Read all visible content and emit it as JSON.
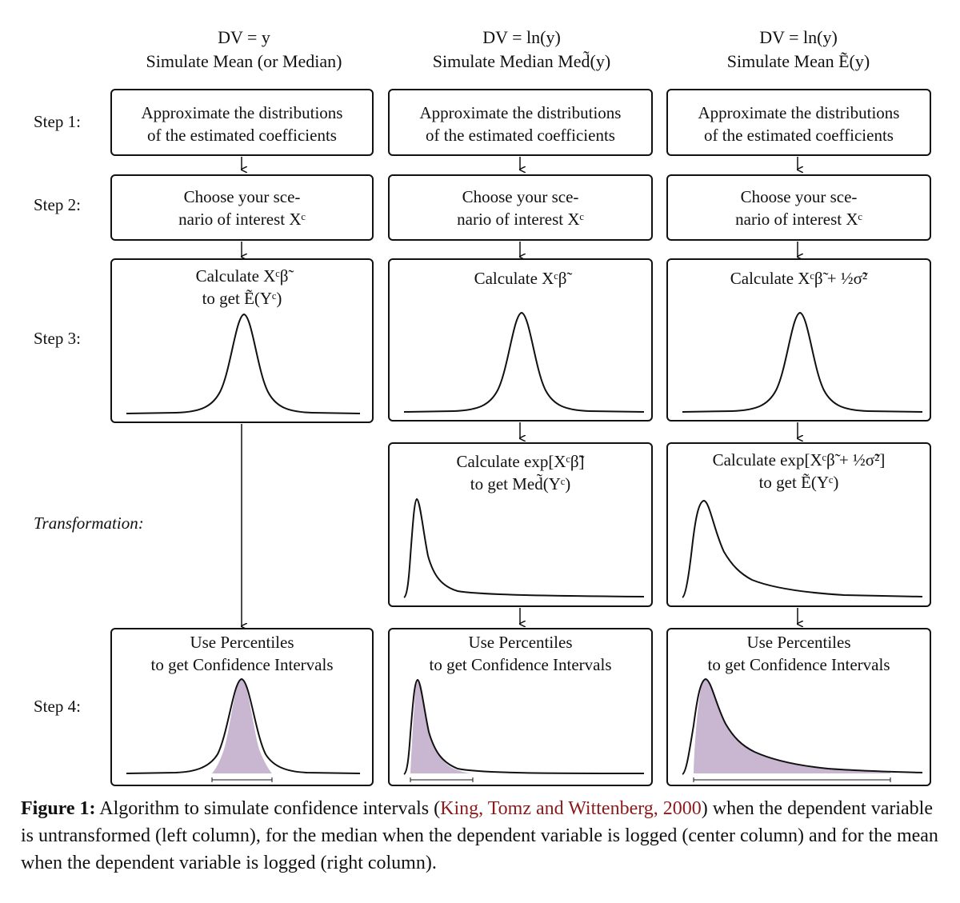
{
  "columns": [
    {
      "head1": "DV = y",
      "head2": "Simulate Mean (or Median)",
      "step1": [
        "Approximate the distributions",
        "of the estimated coefficients"
      ],
      "step2": [
        "Choose your sce-",
        "nario of interest Xᶜ"
      ],
      "step3": [
        "Calculate Xᶜβ̃",
        "to get Ẽ(Yᶜ)"
      ],
      "step4": [
        "Use Percentiles",
        "to get Confidence Intervals"
      ]
    },
    {
      "head1": "DV = ln(y)",
      "head2": "Simulate Median Med̃(y)",
      "step1": [
        "Approximate the distributions",
        "of the estimated coefficients"
      ],
      "step2": [
        "Choose your sce-",
        "nario of interest Xᶜ"
      ],
      "step3": [
        "Calculate Xᶜβ̃"
      ],
      "transform": [
        "Calculate exp[Xᶜβ̃]",
        "to get Med̃(Yᶜ)"
      ],
      "step4": [
        "Use Percentiles",
        "to get Confidence Intervals"
      ]
    },
    {
      "head1": "DV = ln(y)",
      "head2": "Simulate Mean Ẽ(y)",
      "step1": [
        "Approximate the distributions",
        "of the estimated coefficients"
      ],
      "step2": [
        "Choose your sce-",
        "nario of interest Xᶜ"
      ],
      "step3": [
        "Calculate Xᶜβ̃ + ½σ̃²"
      ],
      "transform": [
        "Calculate exp[Xᶜβ̃ + ½σ̃²]",
        "to get Ẽ(Yᶜ)"
      ],
      "step4": [
        "Use Percentiles",
        "to get Confidence Intervals"
      ]
    }
  ],
  "row_labels": {
    "step1": "Step 1:",
    "step2": "Step 2:",
    "step3": "Step 3:",
    "transformation": "Transformation:",
    "step4": "Step 4:"
  },
  "caption": {
    "figure_label": "Figure 1:",
    "text_before": "Algorithm to simulate confidence intervals (",
    "citation": "King, Tomz and Wittenberg, 2000",
    "text_after": ") when the dependent variable is untransformed (left column), for the median when the dependent variable is logged (center column) and for the mean when the dependent variable is logged (right column)."
  },
  "colors": {
    "ci_fill": "#c9b6d0",
    "citation": "#8b1a1a",
    "stroke": "#111111"
  }
}
